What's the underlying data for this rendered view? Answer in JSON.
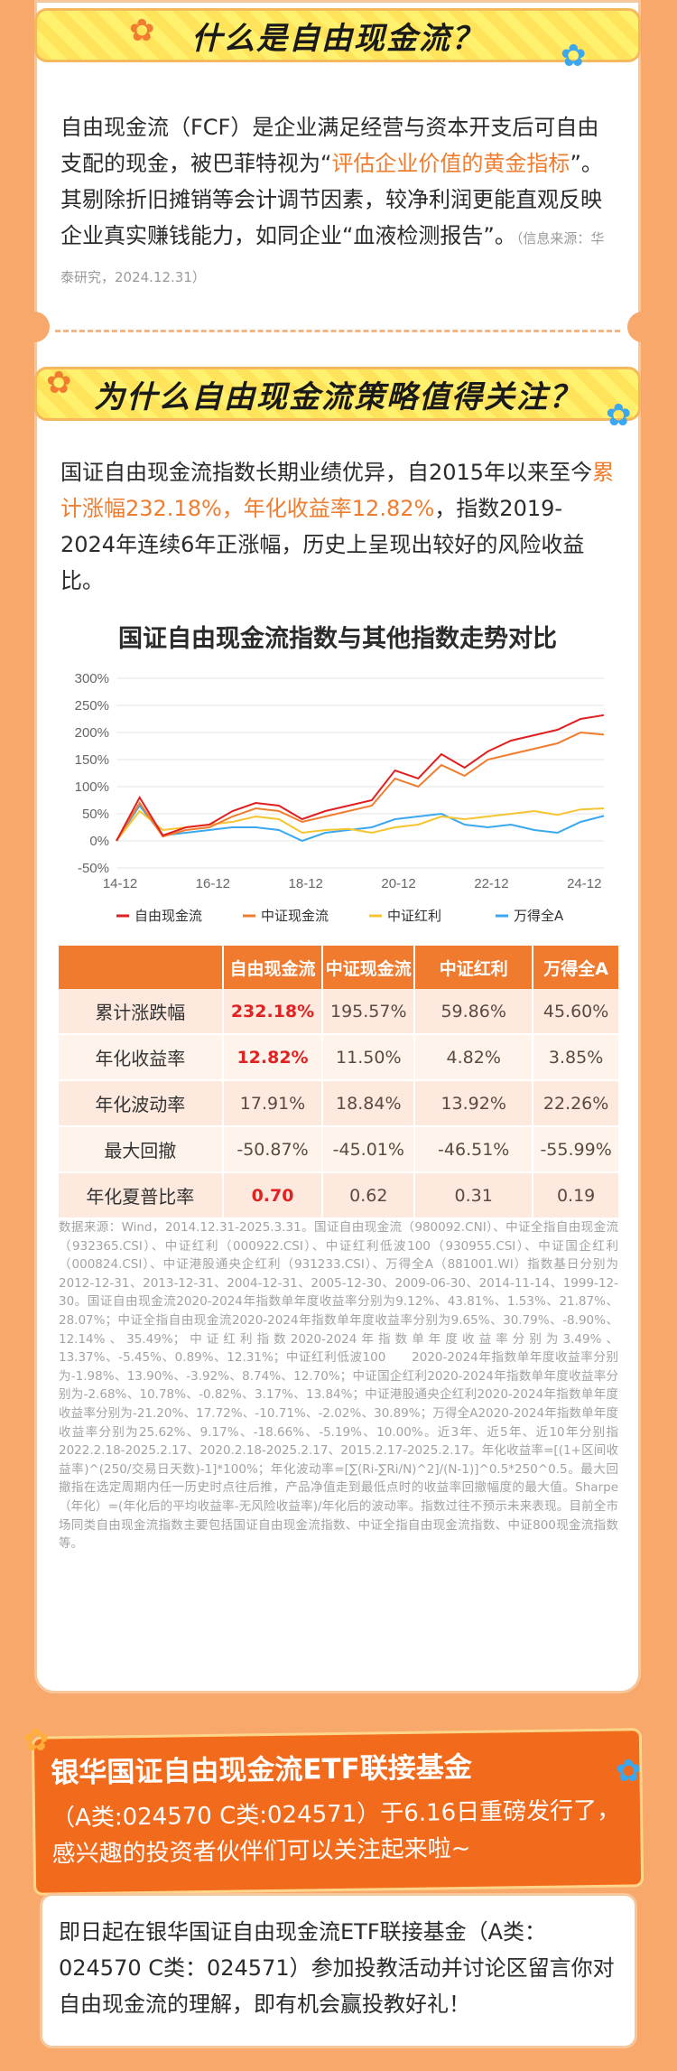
{
  "section1": {
    "title": "什么是自由现金流？",
    "p_a": "自由现金流（FCF）是企业满足经营与资本开支后可自由支配的现金，被巴菲特视为“",
    "p_hl": "评估企业价值的黄金指标",
    "p_b": "”。其剔除折旧摊销等会计调节因素，较净利润更能直观反映企业真实赚钱能力，如同企业“血液检测报告”。",
    "source": "（信息来源：华泰研究，2024.12.31）"
  },
  "section2": {
    "title": "为什么自由现金流策略值得关注？",
    "p_a": "国证自由现金流指数长期业绩优异，自2015年以来至今",
    "p_hl": "累计涨幅232.18%，年化收益率12.82%",
    "p_b": "，指数2019-2024年连续6年正涨幅，历史上呈现出较好的风险收益比。"
  },
  "chart_data": {
    "type": "line",
    "title": "国证自由现金流指数与其他指数走势对比",
    "x": [
      "14-12",
      "15-06",
      "15-12",
      "16-06",
      "16-12",
      "17-06",
      "17-12",
      "18-06",
      "18-12",
      "19-06",
      "19-12",
      "20-06",
      "20-12",
      "21-06",
      "21-12",
      "22-06",
      "22-12",
      "23-06",
      "23-12",
      "24-06",
      "24-12",
      "25-03"
    ],
    "xticks": [
      "14-12",
      "16-12",
      "18-12",
      "20-12",
      "22-12",
      "24-12"
    ],
    "yticks": [
      "300%",
      "250%",
      "200%",
      "150%",
      "100%",
      "50%",
      "0%",
      "-50%"
    ],
    "ylim": [
      -50,
      300
    ],
    "grid": true,
    "legend_position": "bottom",
    "series": [
      {
        "name": "自由现金流",
        "color": "#e02020",
        "values": [
          0,
          80,
          10,
          25,
          30,
          55,
          70,
          65,
          40,
          55,
          65,
          75,
          130,
          115,
          160,
          135,
          165,
          185,
          195,
          205,
          225,
          232
        ]
      },
      {
        "name": "中证现金流",
        "color": "#f07d2f",
        "values": [
          0,
          70,
          8,
          20,
          25,
          45,
          60,
          55,
          35,
          45,
          55,
          65,
          115,
          100,
          140,
          120,
          150,
          160,
          170,
          180,
          200,
          196
        ]
      },
      {
        "name": "中证红利",
        "color": "#f5c530",
        "values": [
          0,
          55,
          20,
          25,
          30,
          35,
          45,
          40,
          15,
          20,
          22,
          15,
          25,
          30,
          45,
          40,
          45,
          50,
          55,
          48,
          58,
          60
        ]
      },
      {
        "name": "万得全A",
        "color": "#3aa7ef",
        "values": [
          0,
          65,
          10,
          15,
          20,
          25,
          25,
          20,
          0,
          15,
          20,
          25,
          40,
          45,
          50,
          30,
          25,
          30,
          20,
          15,
          35,
          46
        ]
      }
    ]
  },
  "table": {
    "headers": [
      "",
      "自由现金流",
      "中证现金流",
      "中证红利",
      "万得全A"
    ],
    "rows": [
      {
        "label": "累计涨跌幅",
        "values": [
          "232.18%",
          "195.57%",
          "59.86%",
          "45.60%"
        ]
      },
      {
        "label": "年化收益率",
        "values": [
          "12.82%",
          "11.50%",
          "4.82%",
          "3.85%"
        ]
      },
      {
        "label": "年化波动率",
        "values": [
          "17.91%",
          "18.84%",
          "13.92%",
          "22.26%"
        ]
      },
      {
        "label": "最大回撤",
        "values": [
          "-50.87%",
          "-45.01%",
          "-46.51%",
          "-55.99%"
        ]
      },
      {
        "label": "年化夏普比率",
        "values": [
          "0.70",
          "0.62",
          "0.31",
          "0.19"
        ]
      }
    ]
  },
  "note": "数据来源：Wind，2014.12.31-2025.3.31。国证自由现金流（980092.CNI）、中证全指自由现金流（932365.CSI）、中证红利（000922.CSI）、中证红利低波100（930955.CSI）、中证国企红利（000824.CSI）、中证港股通央企红利（931233.CSI）、万得全A（881001.WI）指数基日分别为2012-12-31、2013-12-31、2004-12-31、2005-12-30、2009-06-30、2014-11-14、1999-12-30。国证自由现金流2020-2024年指数单年度收益率分别为9.12%、43.81%、1.53%、21.87%、28.07%；中证全指自由现金流2020-2024年指数单年度收益率分别为9.65%、30.79%、-8.90%、12.14%、35.49%；中证红利指数2020-2024年指数单年度收益率分别为3.49%、13.37%、-5.45%、0.89%、12.31%；中证红利低波100　　2020-2024年指数单年度收益率分别为-1.98%、13.90%、-3.92%、8.74%、12.70%；中证国企红利2020-2024年指数单年度收益率分别为-2.68%、10.78%、-0.82%、3.17%、13.84%；中证港股通央企红利2020-2024年指数单年度收益率分别为-21.20%、17.72%、-10.71%、-2.02%、30.89%；万得全A2020-2024年指数单年度收益率分别为25.62%、9.17%、-18.66%、-5.19%、10.00%。近3年、近5年、近10年分别指2022.2.18-2025.2.17、2020.2.18-2025.2.17、2015.2.17-2025.2.17。年化收益率=[(1+区间收益率)^(250/交易日天数)-1]*100%；年化波动率=[∑(Ri-∑Ri/N)^2]/(N-1)]^0.5*250^0.5。最大回撤指在选定周期内任一历史时点往后推，产品净值走到最低点时的收益率回撤幅度的最大值。Sharpe（年化）=(年化后的平均收益率-无风险收益率)/年化后的波动率。指数过往不预示未来表现。目前全市场同类自由现金流指数主要包括国证自由现金流指数、中证全指自由现金流指数、中证800现金流指数等。",
  "promo": {
    "title": "银华国证自由现金流ETF联接基金",
    "line2": "（A类:024570 C类:024571）于6.16日重磅发行了，感兴趣的投资者伙伴们可以关注起来啦~",
    "body": "即日起在银华国证自由现金流ETF联接基金（A类：024570 C类：024571）参加投教活动并讨论区留言你对自由现金流的理解，即有机会赢投教好礼！"
  }
}
